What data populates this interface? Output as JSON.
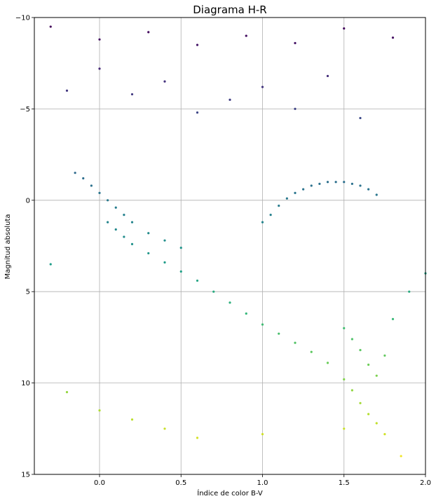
{
  "chart_data": {
    "type": "scatter",
    "title": "Diagrama H-R",
    "xlabel": "Índice de color B-V",
    "ylabel": "Magnitud absoluta",
    "xlim": [
      -0.4,
      2.0
    ],
    "ylim": [
      15,
      -10
    ],
    "y_inverted": true,
    "xticks": [
      0.0,
      0.5,
      1.0,
      1.5,
      2.0
    ],
    "xtick_labels": [
      "0.0",
      "0.5",
      "1.0",
      "1.5",
      "2.0"
    ],
    "yticks": [
      -10,
      -5,
      0,
      5,
      10,
      15
    ],
    "ytick_labels": [
      "−10",
      "−5",
      "0",
      "5",
      "10",
      "15"
    ],
    "grid": true,
    "colormap": "viridis",
    "color_by": "y",
    "series": [
      {
        "x": [
          0.05,
          0.1,
          0.15,
          0.2,
          0.3,
          0.4,
          0.5,
          0.6,
          0.7,
          0.8,
          0.9,
          1.0,
          1.1,
          1.2,
          1.3,
          1.4,
          1.5,
          1.55,
          1.6,
          1.65,
          1.7,
          1.75
        ],
        "y": [
          1.2,
          1.6,
          2.0,
          2.4,
          2.9,
          3.4,
          3.9,
          4.4,
          5.0,
          5.6,
          6.2,
          6.8,
          7.3,
          7.8,
          8.3,
          8.9,
          9.8,
          10.4,
          11.1,
          11.7,
          12.2,
          12.8
        ]
      },
      {
        "x": [
          1.0,
          1.05,
          1.1,
          1.15,
          1.2,
          1.25,
          1.3,
          1.35,
          1.4,
          1.45,
          1.5,
          1.55,
          1.6,
          1.65,
          1.7
        ],
        "y": [
          1.2,
          0.8,
          0.3,
          -0.1,
          -0.4,
          -0.6,
          -0.8,
          -0.9,
          -1.0,
          -1.0,
          -1.0,
          -0.9,
          -0.8,
          -0.6,
          -0.3
        ]
      },
      {
        "x": [
          -0.15,
          -0.1,
          -0.05,
          0.0,
          0.05,
          0.1,
          0.15,
          0.2,
          0.3,
          0.4,
          0.5
        ],
        "y": [
          -1.5,
          -1.2,
          -0.8,
          -0.4,
          0.0,
          0.4,
          0.8,
          1.2,
          1.8,
          2.2,
          2.6
        ]
      },
      {
        "x": [
          -0.2,
          0.0,
          0.2,
          0.4,
          0.6,
          0.8,
          1.0,
          1.2,
          1.4,
          1.6
        ],
        "y": [
          -6.0,
          -7.2,
          -5.8,
          -6.5,
          -4.8,
          -5.5,
          -6.2,
          -5.0,
          -6.8,
          -4.5
        ]
      },
      {
        "x": [
          -0.3,
          0.0,
          0.3,
          0.6,
          0.9,
          1.2,
          1.5,
          1.8
        ],
        "y": [
          -9.5,
          -8.8,
          -9.2,
          -8.5,
          -9.0,
          -8.6,
          -9.4,
          -8.9
        ]
      },
      {
        "x": [
          -0.3,
          -0.2,
          0.0,
          0.2,
          0.4,
          0.6,
          1.0,
          1.5,
          1.85
        ],
        "y": [
          3.5,
          10.5,
          11.5,
          12.0,
          12.5,
          13.0,
          12.8,
          12.5,
          14.0
        ]
      },
      {
        "x": [
          1.5,
          1.55,
          1.6,
          1.65,
          1.7,
          1.75,
          1.8,
          1.9,
          2.0
        ],
        "y": [
          7.0,
          7.6,
          8.2,
          9.0,
          9.6,
          8.5,
          6.5,
          5.0,
          4.0
        ]
      }
    ]
  }
}
